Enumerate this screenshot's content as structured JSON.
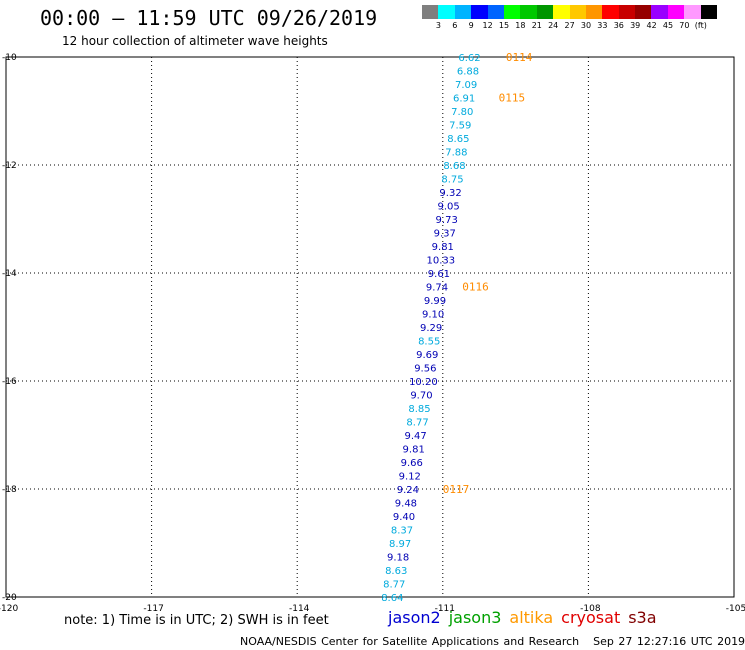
{
  "header": {
    "title": "00:00 – 11:59 UTC 09/26/2019",
    "subtitle": "12 hour collection of altimeter wave heights"
  },
  "colorbar": {
    "colors": [
      "#7f7f7f",
      "#00ffff",
      "#00b4ff",
      "#0000ff",
      "#0064ff",
      "#00ff00",
      "#00c800",
      "#009600",
      "#ffff00",
      "#ffc800",
      "#ff9600",
      "#ff0000",
      "#c80000",
      "#960000",
      "#9a00ff",
      "#ff00ff",
      "#ff99ff",
      "#000000"
    ],
    "labels": [
      "3",
      "6",
      "9",
      "12",
      "15",
      "18",
      "21",
      "24",
      "27",
      "30",
      "33",
      "36",
      "39",
      "42",
      "45",
      "70",
      "(ft)"
    ]
  },
  "chart_data": {
    "type": "scatter",
    "title": "00:00 – 11:59 UTC 09/26/2019",
    "subtitle": "12 hour collection of altimeter wave heights",
    "x_ticks": [
      "-120",
      "-117",
      "-114",
      "-111",
      "-108",
      "-105"
    ],
    "y_ticks": [
      "-10",
      "-12",
      "-14",
      "-16",
      "-18",
      "-20"
    ],
    "xlim": [
      -120,
      -105
    ],
    "ylim": [
      -20,
      -10
    ],
    "grid": true,
    "series": [
      {
        "name": "jason2",
        "color": "#0000b4",
        "points": []
      }
    ],
    "points": [
      {
        "lon": -110.45,
        "lat": -10.0,
        "label": "6.62",
        "color": "#00aadd"
      },
      {
        "lon": -110.48,
        "lat": -10.25,
        "label": "6.88",
        "color": "#00aadd"
      },
      {
        "lon": -110.52,
        "lat": -10.5,
        "label": "7.09",
        "color": "#00aadd"
      },
      {
        "lon": -110.56,
        "lat": -10.75,
        "label": "6.91",
        "color": "#00aadd"
      },
      {
        "lon": -110.6,
        "lat": -11.0,
        "label": "7.80",
        "color": "#00aadd"
      },
      {
        "lon": -110.64,
        "lat": -11.25,
        "label": "7.59",
        "color": "#00aadd"
      },
      {
        "lon": -110.68,
        "lat": -11.5,
        "label": "8.65",
        "color": "#00aadd"
      },
      {
        "lon": -110.72,
        "lat": -11.75,
        "label": "7.88",
        "color": "#00aadd"
      },
      {
        "lon": -110.76,
        "lat": -12.0,
        "label": "8.68",
        "color": "#00aadd"
      },
      {
        "lon": -110.8,
        "lat": -12.25,
        "label": "8.75",
        "color": "#00aadd"
      },
      {
        "lon": -110.84,
        "lat": -12.5,
        "label": "9.32",
        "color": "#0000b4"
      },
      {
        "lon": -110.88,
        "lat": -12.75,
        "label": "9.05",
        "color": "#0000b4"
      },
      {
        "lon": -110.92,
        "lat": -13.0,
        "label": "9.73",
        "color": "#0000b4"
      },
      {
        "lon": -110.96,
        "lat": -13.25,
        "label": "9.37",
        "color": "#0000b4"
      },
      {
        "lon": -111.0,
        "lat": -13.5,
        "label": "9.81",
        "color": "#0000b4"
      },
      {
        "lon": -111.04,
        "lat": -13.75,
        "label": "10.33",
        "color": "#0000b4"
      },
      {
        "lon": -111.08,
        "lat": -14.0,
        "label": "9.61",
        "color": "#0000b4"
      },
      {
        "lon": -111.12,
        "lat": -14.25,
        "label": "9.74",
        "color": "#0000b4"
      },
      {
        "lon": -111.16,
        "lat": -14.5,
        "label": "9.99",
        "color": "#0000b4"
      },
      {
        "lon": -111.2,
        "lat": -14.75,
        "label": "9.10",
        "color": "#0000b4"
      },
      {
        "lon": -111.24,
        "lat": -15.0,
        "label": "9.29",
        "color": "#0000b4"
      },
      {
        "lon": -111.28,
        "lat": -15.25,
        "label": "8.55",
        "color": "#00aadd"
      },
      {
        "lon": -111.32,
        "lat": -15.5,
        "label": "9.69",
        "color": "#0000b4"
      },
      {
        "lon": -111.36,
        "lat": -15.75,
        "label": "9.56",
        "color": "#0000b4"
      },
      {
        "lon": -111.4,
        "lat": -16.0,
        "label": "10.20",
        "color": "#0000b4"
      },
      {
        "lon": -111.44,
        "lat": -16.25,
        "label": "9.70",
        "color": "#0000b4"
      },
      {
        "lon": -111.48,
        "lat": -16.5,
        "label": "8.85",
        "color": "#00aadd"
      },
      {
        "lon": -111.52,
        "lat": -16.75,
        "label": "8.77",
        "color": "#00aadd"
      },
      {
        "lon": -111.56,
        "lat": -17.0,
        "label": "9.47",
        "color": "#0000b4"
      },
      {
        "lon": -111.6,
        "lat": -17.25,
        "label": "9.81",
        "color": "#0000b4"
      },
      {
        "lon": -111.64,
        "lat": -17.5,
        "label": "9.66",
        "color": "#0000b4"
      },
      {
        "lon": -111.68,
        "lat": -17.75,
        "label": "9.12",
        "color": "#0000b4"
      },
      {
        "lon": -111.72,
        "lat": -18.0,
        "label": "9.24",
        "color": "#0000b4"
      },
      {
        "lon": -111.76,
        "lat": -18.25,
        "label": "9.48",
        "color": "#0000b4"
      },
      {
        "lon": -111.8,
        "lat": -18.5,
        "label": "9.40",
        "color": "#0000b4"
      },
      {
        "lon": -111.84,
        "lat": -18.75,
        "label": "8.37",
        "color": "#00aadd"
      },
      {
        "lon": -111.88,
        "lat": -19.0,
        "label": "8.97",
        "color": "#00aadd"
      },
      {
        "lon": -111.92,
        "lat": -19.25,
        "label": "9.18",
        "color": "#0000b4"
      },
      {
        "lon": -111.96,
        "lat": -19.5,
        "label": "8.63",
        "color": "#00aadd"
      },
      {
        "lon": -112.0,
        "lat": -19.75,
        "label": "8.77",
        "color": "#00aadd"
      },
      {
        "lon": -112.04,
        "lat": -20.0,
        "label": "8.64",
        "color": "#00aadd"
      }
    ],
    "pass_labels": [
      {
        "lon": -109.7,
        "lat": -10.0,
        "label": "0114",
        "color": "#ff8c00"
      },
      {
        "lon": -109.85,
        "lat": -10.75,
        "label": "0115",
        "color": "#ff8c00"
      },
      {
        "lon": -110.6,
        "lat": -14.25,
        "label": "0116",
        "color": "#ff8c00"
      },
      {
        "lon": -111.0,
        "lat": -18.0,
        "label": "0117",
        "color": "#ff8c00"
      }
    ]
  },
  "footer": {
    "note": "note: 1) Time is in UTC; 2) SWH is in feet",
    "legend": [
      {
        "label": "jason2",
        "color": "#0000d0"
      },
      {
        "label": "jason3",
        "color": "#00a000"
      },
      {
        "label": "altika",
        "color": "#ff9900"
      },
      {
        "label": "cryosat",
        "color": "#e00000"
      },
      {
        "label": "s3a",
        "color": "#800000"
      }
    ],
    "credit": "NOAA/NESDIS Center for Satellite Applications and Research",
    "timestamp": "Sep 27 12:27:16 UTC 2019"
  }
}
